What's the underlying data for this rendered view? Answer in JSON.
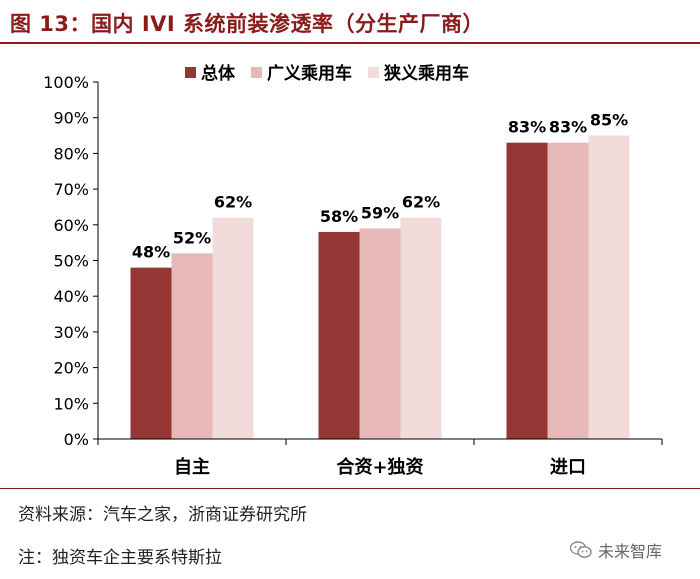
{
  "header": {
    "title": "图 13：国内 IVI 系统前装渗透率（分生产厂商）"
  },
  "footer": {
    "source": "资料来源：汽车之家，浙商证券研究所",
    "note": "注：独资车企主要系特斯拉",
    "watermark": "未来智库"
  },
  "chart_data": {
    "type": "bar",
    "title": "",
    "xlabel": "",
    "ylabel": "",
    "ylim": [
      0,
      100
    ],
    "yticks": [
      0,
      10,
      20,
      30,
      40,
      50,
      60,
      70,
      80,
      90,
      100
    ],
    "ytick_labels": [
      "0%",
      "10%",
      "20%",
      "30%",
      "40%",
      "50%",
      "60%",
      "70%",
      "80%",
      "90%",
      "100%"
    ],
    "categories": [
      "自主",
      "合资+独资",
      "进口"
    ],
    "legend_position": "top",
    "series": [
      {
        "name": "总体",
        "color": "#943634",
        "values": [
          48,
          58,
          83
        ],
        "labels": [
          "48%",
          "58%",
          "83%"
        ]
      },
      {
        "name": "广义乘用车",
        "color": "#e6b9b8",
        "values": [
          52,
          59,
          83
        ],
        "labels": [
          "52%",
          "59%",
          "83%"
        ]
      },
      {
        "name": "狭义乘用车",
        "color": "#f2dcdb",
        "values": [
          62,
          62,
          85
        ],
        "labels": [
          "62%",
          "62%",
          "85%"
        ]
      }
    ]
  }
}
